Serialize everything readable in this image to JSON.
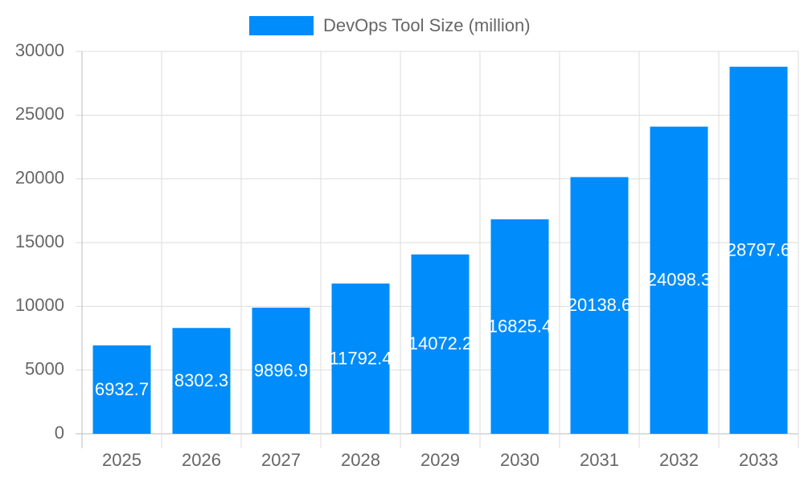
{
  "chart_data": {
    "type": "bar",
    "legend": "DevOps Tool Size (million)",
    "categories": [
      "2025",
      "2026",
      "2027",
      "2028",
      "2029",
      "2030",
      "2031",
      "2032",
      "2033"
    ],
    "values": [
      6932.7,
      8302.3,
      9896.9,
      11792.4,
      14072.2,
      16825.4,
      20138.6,
      24098.3,
      28797.6
    ],
    "color": "#008cfa",
    "ylim": [
      0,
      30000
    ],
    "yticks": [
      0,
      5000,
      10000,
      15000,
      20000,
      25000,
      30000
    ],
    "grid": true,
    "legend_position": "top"
  }
}
